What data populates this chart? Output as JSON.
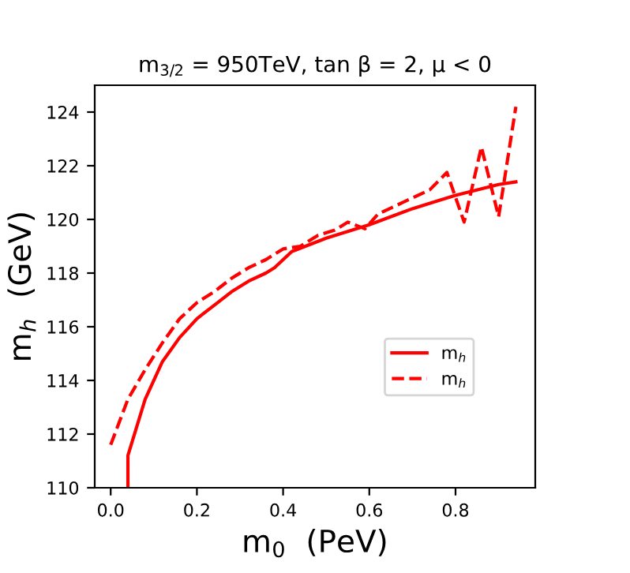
{
  "chart_data": {
    "type": "line",
    "title": "m$_{3/2}$ = 950TeV, tan β = 2, μ < 0",
    "xlabel": "m$_{0}$  (PeV)",
    "ylabel": "m$_{h}$  (GeV)",
    "xlim": [
      -0.037,
      0.985
    ],
    "ylim": [
      110,
      125
    ],
    "xticks": [
      {
        "value": 0,
        "label": "0.0"
      },
      0.2,
      0.4,
      0.6,
      0.8
    ],
    "yticks": [
      110,
      112,
      114,
      116,
      118,
      120,
      122,
      124
    ],
    "grid": false,
    "legend": "right",
    "marker": "none",
    "series": [
      {
        "name": "m$_{h}$",
        "color": "#ff0000",
        "line_style": "solid",
        "x": [
          0.04,
          0.04,
          0.08,
          0.12,
          0.16,
          0.2,
          0.24,
          0.28,
          0.32,
          0.36,
          0.38,
          0.42,
          0.5,
          0.6,
          0.7,
          0.8,
          0.9,
          0.94
        ],
        "values": [
          110,
          111.2,
          113.3,
          114.7,
          115.6,
          116.3,
          116.8,
          117.3,
          117.7,
          118.0,
          118.2,
          118.8,
          119.3,
          119.8,
          120.4,
          120.9,
          121.3,
          121.4
        ]
      },
      {
        "name": "m$_{h}$",
        "color": "#ff0000",
        "line_style": "dashed",
        "x": [
          0.0,
          0.04,
          0.08,
          0.12,
          0.16,
          0.2,
          0.24,
          0.28,
          0.32,
          0.36,
          0.4,
          0.44,
          0.48,
          0.52,
          0.55,
          0.59,
          0.62,
          0.66,
          0.7,
          0.74,
          0.78,
          0.82,
          0.86,
          0.9,
          0.94
        ],
        "values": [
          111.6,
          113.3,
          114.4,
          115.4,
          116.3,
          116.9,
          117.3,
          117.8,
          118.2,
          118.5,
          118.9,
          119.0,
          119.4,
          119.6,
          119.9,
          119.65,
          120.2,
          120.5,
          120.8,
          121.1,
          121.75,
          119.9,
          122.7,
          120.1,
          124.2
        ]
      }
    ]
  }
}
